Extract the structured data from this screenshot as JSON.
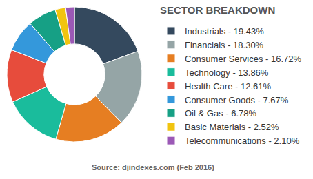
{
  "chart_data": {
    "type": "pie",
    "title": "SECTOR BREAKDOWN",
    "categories": [
      "Industrials - 19.43%",
      "Financials - 18.30%",
      "Consumer Services - 16.72%",
      "Technology - 13.86%",
      "Health Care - 12.61%",
      "Consumer Goods - 7.67%",
      "Oil & Gas - 6.78%",
      "Basic Materials - 2.52%",
      "Telecommunications - 2.10%"
    ],
    "values": [
      19.43,
      18.3,
      16.72,
      13.86,
      12.61,
      7.67,
      6.78,
      2.52,
      2.1
    ],
    "colors": [
      "#34495e",
      "#95a5a6",
      "#e67e22",
      "#1abc9c",
      "#e74c3c",
      "#3498db",
      "#16a085",
      "#f1c40f",
      "#9b59b6"
    ],
    "legend": "right",
    "annotations": [
      "Source: djindexes.com (Feb 2016)"
    ]
  }
}
